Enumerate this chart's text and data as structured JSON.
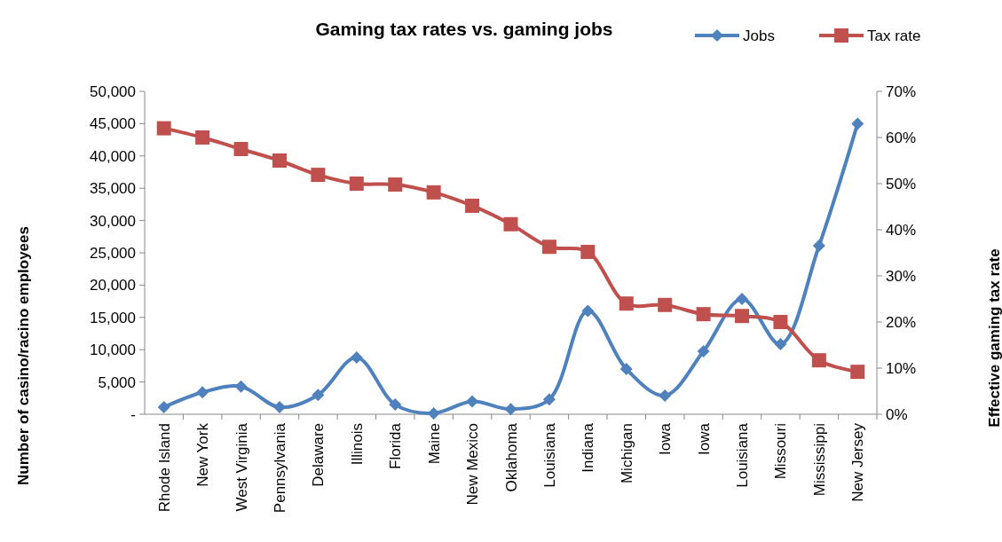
{
  "chart_data": {
    "type": "line",
    "title": "Gaming tax rates vs. gaming jobs",
    "ylabel": "Number of casino/racino employees",
    "y2label": "Effective gaming tax rate",
    "categories": [
      "Rhode Island",
      "New York",
      "West Virginia",
      "Pennsylvania",
      "Delaware",
      "Illinois",
      "Florida",
      "Maine",
      "New Mexico",
      "Oklahoma",
      "Louisiana",
      "Indiana",
      "Michigan",
      "Iowa",
      "Iowa",
      "Louisiana",
      "Missouri",
      "Mississippi",
      "New Jersey"
    ],
    "series": [
      {
        "name": "Jobs",
        "color": "#4f81bd",
        "marker": "diamond",
        "values": [
          1100,
          3400,
          4300,
          1100,
          3000,
          8800,
          1500,
          150,
          2000,
          800,
          2300,
          16000,
          7000,
          2900,
          9750,
          17850,
          10850,
          26100,
          45000
        ]
      },
      {
        "name": "Tax rate",
        "color": "#c0504d",
        "marker": "square",
        "axis": "y2",
        "values": [
          62,
          60,
          57.5,
          55,
          51.9,
          50,
          49.8,
          48.1,
          45.2,
          41.2,
          36.3,
          35.2,
          24,
          23.7,
          21.7,
          21.3,
          20,
          11.7,
          9.2
        ]
      }
    ],
    "ylim": [
      0,
      50000
    ],
    "yticks": [
      {
        "value": 0,
        "label": "-"
      },
      {
        "value": 5000,
        "label": "5,000"
      },
      {
        "value": 10000,
        "label": "10,000"
      },
      {
        "value": 15000,
        "label": "15,000"
      },
      {
        "value": 20000,
        "label": "20,000"
      },
      {
        "value": 25000,
        "label": "25,000"
      },
      {
        "value": 30000,
        "label": "30,000"
      },
      {
        "value": 35000,
        "label": "35,000"
      },
      {
        "value": 40000,
        "label": "40,000"
      },
      {
        "value": 45000,
        "label": "45,000"
      },
      {
        "value": 50000,
        "label": "50,000"
      }
    ],
    "y2lim": [
      0,
      70
    ],
    "y2ticks": [
      {
        "value": 0,
        "label": "0%"
      },
      {
        "value": 10,
        "label": "10%"
      },
      {
        "value": 20,
        "label": "20%"
      },
      {
        "value": 30,
        "label": "30%"
      },
      {
        "value": 40,
        "label": "40%"
      },
      {
        "value": 50,
        "label": "50%"
      },
      {
        "value": 60,
        "label": "60%"
      },
      {
        "value": 70,
        "label": "70%"
      }
    ],
    "legend": "top right",
    "grid": false,
    "line_style": "solid"
  }
}
